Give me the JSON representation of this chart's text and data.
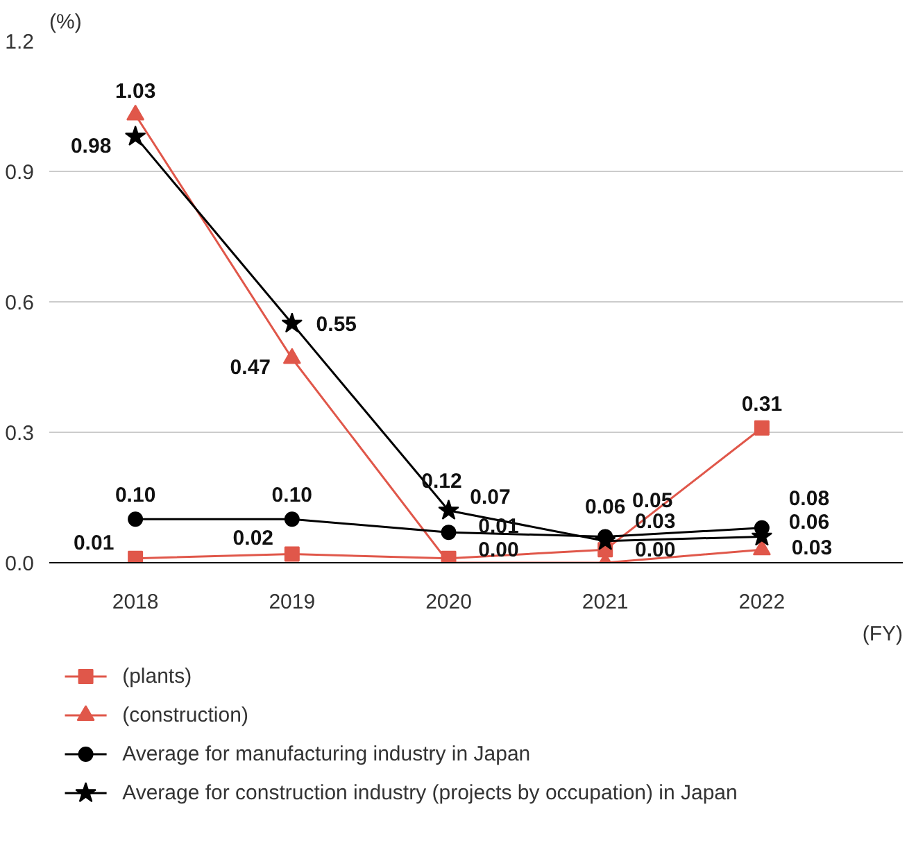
{
  "chart_data": {
    "type": "line",
    "ylabel": "(%)",
    "xlabel": "(FY)",
    "categories": [
      "2018",
      "2019",
      "2020",
      "2021",
      "2022"
    ],
    "ylim": [
      0,
      1.2
    ],
    "yticks": [
      {
        "value": 0,
        "label": "0.0"
      },
      0.3,
      0.6,
      0.9,
      1.2
    ],
    "grid": "y",
    "legend": "bottom",
    "line_style": "solid",
    "series": [
      {
        "name": "(plants)",
        "color": "#e0574a",
        "marker": "square",
        "values": [
          0.01,
          0.02,
          0.01,
          0.03,
          0.31
        ],
        "value_labels": [
          "0.01",
          "0.02",
          "0.01",
          "0.03",
          "0.31"
        ]
      },
      {
        "name": "(construction)",
        "color": "#e0574a",
        "marker": "triangle",
        "values": [
          1.03,
          0.47,
          0.0,
          0.0,
          0.03
        ],
        "value_labels": [
          "1.03",
          "0.47",
          "0.00",
          "0.00",
          "0.03"
        ]
      },
      {
        "name": "Average for manufacturing industry in Japan",
        "color": "#000000",
        "marker": "circle",
        "values": [
          0.1,
          0.1,
          0.07,
          0.06,
          0.08
        ],
        "value_labels": [
          "0.10",
          "0.10",
          "0.07",
          "0.06",
          "0.08"
        ]
      },
      {
        "name": "Average for construction industry (projects by occupation) in Japan",
        "color": "#000000",
        "marker": "star",
        "values": [
          0.98,
          0.55,
          0.12,
          0.05,
          0.06
        ],
        "value_labels": [
          "0.98",
          "0.55",
          "0.12",
          "0.05",
          "0.06"
        ]
      }
    ]
  }
}
